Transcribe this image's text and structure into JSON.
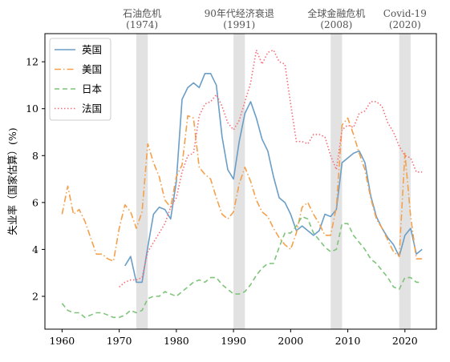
{
  "chart_data": {
    "type": "line",
    "title": "",
    "xlabel": "",
    "ylabel": "失业率（国家估算）(%)",
    "xlim": [
      1957,
      2025.5
    ],
    "ylim": [
      0.6,
      13.2
    ],
    "xticks": [
      1960,
      1970,
      1980,
      1990,
      2000,
      2010,
      2020
    ],
    "yticks": [
      2,
      4,
      6,
      8,
      10,
      12
    ],
    "grid": false,
    "legend_position": "top-left",
    "events": [
      {
        "name": "石油危机",
        "year_label": "(1974)",
        "start": 1973,
        "end": 1975
      },
      {
        "name": "90年代经济衰退",
        "year_label": "(1991)",
        "start": 1990,
        "end": 1992
      },
      {
        "name": "全球金融危机",
        "year_label": "(2008)",
        "start": 2007,
        "end": 2009
      },
      {
        "name": "Covid-19",
        "year_label": "(2020)",
        "start": 2019,
        "end": 2021
      }
    ],
    "series": [
      {
        "name": "英国",
        "color": "#6a9ec7",
        "dash": "solid",
        "x": [
          1971,
          1972,
          1973,
          1974,
          1975,
          1976,
          1977,
          1978,
          1979,
          1980,
          1981,
          1982,
          1983,
          1984,
          1985,
          1986,
          1987,
          1988,
          1989,
          1990,
          1991,
          1992,
          1993,
          1994,
          1995,
          1996,
          1997,
          1998,
          1999,
          2000,
          2001,
          2002,
          2003,
          2004,
          2005,
          2006,
          2007,
          2008,
          2009,
          2010,
          2011,
          2012,
          2013,
          2014,
          2015,
          2016,
          2017,
          2018,
          2019,
          2020,
          2021,
          2022,
          2023
        ],
        "y": [
          3.3,
          3.7,
          2.6,
          2.6,
          4.1,
          5.5,
          5.8,
          5.7,
          5.3,
          6.9,
          10.4,
          10.9,
          11.1,
          10.9,
          11.5,
          11.5,
          11.0,
          8.8,
          7.4,
          7.0,
          8.6,
          9.8,
          10.3,
          9.6,
          8.7,
          8.2,
          7.1,
          6.2,
          6.0,
          5.5,
          4.8,
          5.0,
          4.8,
          4.6,
          4.8,
          5.5,
          5.4,
          5.7,
          7.7,
          7.9,
          8.1,
          8.2,
          7.7,
          6.3,
          5.4,
          4.9,
          4.5,
          4.2,
          3.7,
          4.6,
          4.9,
          3.8,
          4.0
        ]
      },
      {
        "name": "美国",
        "color": "#f5a04a",
        "dash": "dashdot",
        "x": [
          1960,
          1961,
          1962,
          1963,
          1964,
          1965,
          1966,
          1967,
          1968,
          1969,
          1970,
          1971,
          1972,
          1973,
          1974,
          1975,
          1976,
          1977,
          1978,
          1979,
          1980,
          1981,
          1982,
          1983,
          1984,
          1985,
          1986,
          1987,
          1988,
          1989,
          1990,
          1991,
          1992,
          1993,
          1994,
          1995,
          1996,
          1997,
          1998,
          1999,
          2000,
          2001,
          2002,
          2003,
          2004,
          2005,
          2006,
          2007,
          2008,
          2009,
          2010,
          2011,
          2012,
          2013,
          2014,
          2015,
          2016,
          2017,
          2018,
          2019,
          2020,
          2021,
          2022,
          2023
        ],
        "y": [
          5.5,
          6.7,
          5.5,
          5.7,
          5.2,
          4.5,
          3.8,
          3.8,
          3.6,
          3.5,
          4.9,
          5.9,
          5.6,
          4.9,
          5.6,
          8.5,
          7.7,
          7.1,
          6.1,
          5.8,
          7.1,
          7.6,
          9.7,
          9.6,
          7.5,
          7.2,
          7.0,
          6.2,
          5.5,
          5.3,
          5.6,
          6.8,
          7.5,
          6.9,
          6.1,
          5.6,
          5.4,
          4.9,
          4.5,
          4.2,
          4.0,
          4.7,
          5.8,
          6.0,
          5.5,
          5.1,
          4.6,
          4.6,
          5.8,
          9.3,
          9.6,
          8.9,
          8.1,
          7.4,
          6.2,
          5.3,
          4.9,
          4.4,
          3.9,
          3.7,
          8.1,
          5.4,
          3.6,
          3.6
        ]
      },
      {
        "name": "日本",
        "color": "#7fc47a",
        "dash": "dashed",
        "x": [
          1960,
          1961,
          1962,
          1963,
          1964,
          1965,
          1966,
          1967,
          1968,
          1969,
          1970,
          1971,
          1972,
          1973,
          1974,
          1975,
          1976,
          1977,
          1978,
          1979,
          1980,
          1981,
          1982,
          1983,
          1984,
          1985,
          1986,
          1987,
          1988,
          1989,
          1990,
          1991,
          1992,
          1993,
          1994,
          1995,
          1996,
          1997,
          1998,
          1999,
          2000,
          2001,
          2002,
          2003,
          2004,
          2005,
          2006,
          2007,
          2008,
          2009,
          2010,
          2011,
          2012,
          2013,
          2014,
          2015,
          2016,
          2017,
          2018,
          2019,
          2020,
          2021,
          2022,
          2023
        ],
        "y": [
          1.7,
          1.4,
          1.3,
          1.3,
          1.1,
          1.2,
          1.3,
          1.3,
          1.2,
          1.1,
          1.1,
          1.2,
          1.4,
          1.3,
          1.4,
          1.9,
          2.0,
          2.0,
          2.2,
          2.1,
          2.0,
          2.2,
          2.4,
          2.6,
          2.7,
          2.6,
          2.8,
          2.8,
          2.5,
          2.3,
          2.1,
          2.1,
          2.2,
          2.5,
          2.9,
          3.2,
          3.4,
          3.4,
          4.1,
          4.7,
          4.7,
          5.0,
          5.4,
          5.3,
          4.7,
          4.4,
          4.1,
          3.9,
          4.0,
          5.1,
          5.1,
          4.6,
          4.3,
          4.0,
          3.6,
          3.4,
          3.1,
          2.8,
          2.4,
          2.3,
          2.8,
          2.8,
          2.6,
          2.6
        ]
      },
      {
        "name": "法国",
        "color": "#f56d78",
        "dash": "dotted",
        "x": [
          1970,
          1971,
          1972,
          1973,
          1974,
          1975,
          1976,
          1977,
          1978,
          1979,
          1980,
          1981,
          1982,
          1983,
          1984,
          1985,
          1986,
          1987,
          1988,
          1989,
          1990,
          1991,
          1992,
          1993,
          1994,
          1995,
          1996,
          1997,
          1998,
          1999,
          2000,
          2001,
          2002,
          2003,
          2004,
          2005,
          2006,
          2007,
          2008,
          2009,
          2010,
          2011,
          2012,
          2013,
          2014,
          2015,
          2016,
          2017,
          2018,
          2019,
          2020,
          2021,
          2022,
          2023
        ],
        "y": [
          2.4,
          2.6,
          2.7,
          2.7,
          2.8,
          3.9,
          4.3,
          4.7,
          5.1,
          5.8,
          6.2,
          7.3,
          8.0,
          8.1,
          9.7,
          10.2,
          10.3,
          10.6,
          10.1,
          9.4,
          9.1,
          9.5,
          10.3,
          11.1,
          12.5,
          11.9,
          12.4,
          12.5,
          12.0,
          11.9,
          10.2,
          8.6,
          8.6,
          8.5,
          8.9,
          8.9,
          8.8,
          8.0,
          7.4,
          9.1,
          9.3,
          9.2,
          9.8,
          9.9,
          10.3,
          10.3,
          10.1,
          9.4,
          9.0,
          8.4,
          8.0,
          7.9,
          7.3,
          7.3
        ]
      }
    ]
  }
}
